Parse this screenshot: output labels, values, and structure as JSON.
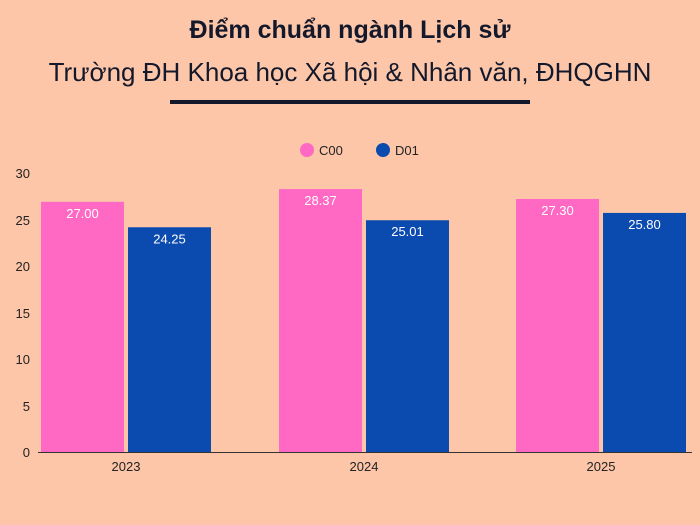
{
  "title": "Điểm chuẩn ngành Lịch sử",
  "subtitle": "Trường ĐH Khoa học Xã hội & Nhân văn, ĐHQGHN",
  "colors": {
    "background": "#FDC6A8",
    "C00": "#FF69C4",
    "D01": "#0B4AAE"
  },
  "chart_data": {
    "type": "bar",
    "categories": [
      "2023",
      "2024",
      "2025"
    ],
    "series": [
      {
        "name": "C00",
        "values": [
          27.0,
          28.37,
          27.3
        ],
        "labels": [
          "27.00",
          "28.37",
          "27.30"
        ]
      },
      {
        "name": "D01",
        "values": [
          24.25,
          25.01,
          25.8
        ],
        "labels": [
          "24.25",
          "25.01",
          "25.80"
        ]
      }
    ],
    "ylim": [
      0,
      30
    ],
    "yticks": [
      "0",
      "5",
      "10",
      "15",
      "20",
      "25",
      "30"
    ],
    "legend_position": "top-center",
    "grid": false,
    "xlabel": "",
    "ylabel": ""
  }
}
